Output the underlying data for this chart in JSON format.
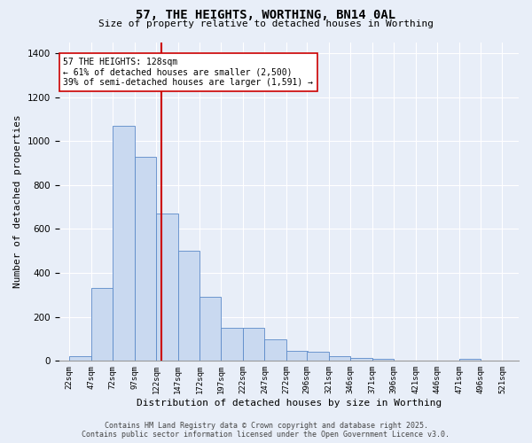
{
  "title": "57, THE HEIGHTS, WORTHING, BN14 0AL",
  "subtitle": "Size of property relative to detached houses in Worthing",
  "xlabel": "Distribution of detached houses by size in Worthing",
  "ylabel": "Number of detached properties",
  "bar_values": [
    20,
    330,
    1070,
    930,
    670,
    500,
    290,
    150,
    150,
    100,
    45,
    40,
    20,
    15,
    10,
    0,
    0,
    0,
    10,
    0
  ],
  "bin_edges": [
    22,
    47,
    72,
    97,
    122,
    147,
    172,
    197,
    222,
    247,
    272,
    296,
    321,
    346,
    371,
    396,
    421,
    446,
    471,
    496,
    521
  ],
  "tick_labels": [
    "22sqm",
    "47sqm",
    "72sqm",
    "97sqm",
    "122sqm",
    "147sqm",
    "172sqm",
    "197sqm",
    "222sqm",
    "247sqm",
    "272sqm",
    "296sqm",
    "321sqm",
    "346sqm",
    "371sqm",
    "396sqm",
    "421sqm",
    "446sqm",
    "471sqm",
    "496sqm",
    "521sqm"
  ],
  "bar_color": "#c9d9f0",
  "bar_edge_color": "#5b8ac9",
  "vline_x": 128,
  "vline_color": "#cc0000",
  "annotation_text": "57 THE HEIGHTS: 128sqm\n← 61% of detached houses are smaller (2,500)\n39% of semi-detached houses are larger (1,591) →",
  "annotation_box_color": "#ffffff",
  "annotation_box_edge": "#cc0000",
  "ylim": [
    0,
    1450
  ],
  "xlim_left": 10,
  "xlim_right": 540,
  "background_color": "#e8eef8",
  "grid_color": "#ffffff",
  "footer": "Contains HM Land Registry data © Crown copyright and database right 2025.\nContains public sector information licensed under the Open Government Licence v3.0.",
  "title_fontsize": 10,
  "subtitle_fontsize": 8,
  "ylabel_fontsize": 8,
  "xlabel_fontsize": 8,
  "tick_fontsize": 6.5,
  "ytick_fontsize": 7.5,
  "footer_fontsize": 6,
  "annot_fontsize": 7
}
